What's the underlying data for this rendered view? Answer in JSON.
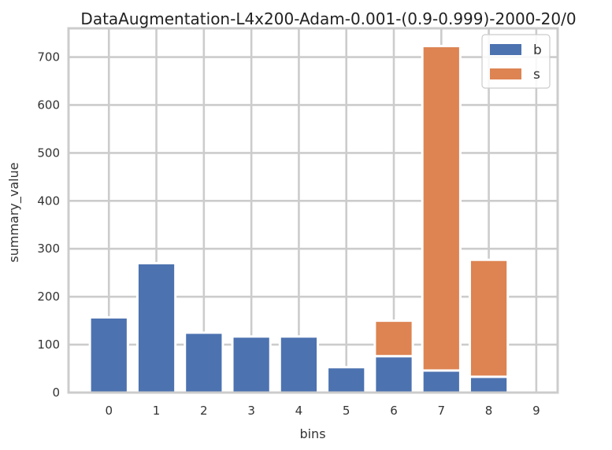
{
  "chart_data": {
    "type": "bar",
    "stacked": true,
    "title": "DataAugmentation-L4x200-Adam-0.001-(0.9-0.999)-2000-20/0",
    "xlabel": "bins",
    "ylabel": "summary_value",
    "categories": [
      "0",
      "1",
      "2",
      "3",
      "4",
      "5",
      "6",
      "7",
      "8",
      "9"
    ],
    "series": [
      {
        "name": "b",
        "color": "#4c72b0",
        "values": [
          157,
          270,
          125,
          117,
          117,
          53,
          76,
          46,
          33,
          0
        ]
      },
      {
        "name": "s",
        "color": "#dd8452",
        "values": [
          0,
          0,
          0,
          0,
          0,
          0,
          74,
          677,
          244,
          0
        ]
      }
    ],
    "ylim": [
      0,
      760
    ],
    "xlim": [
      -0.85,
      9.45
    ],
    "yticks": [
      "0",
      "100",
      "200",
      "300",
      "400",
      "500",
      "600",
      "700"
    ],
    "grid": true,
    "legend_position": "top-right"
  }
}
